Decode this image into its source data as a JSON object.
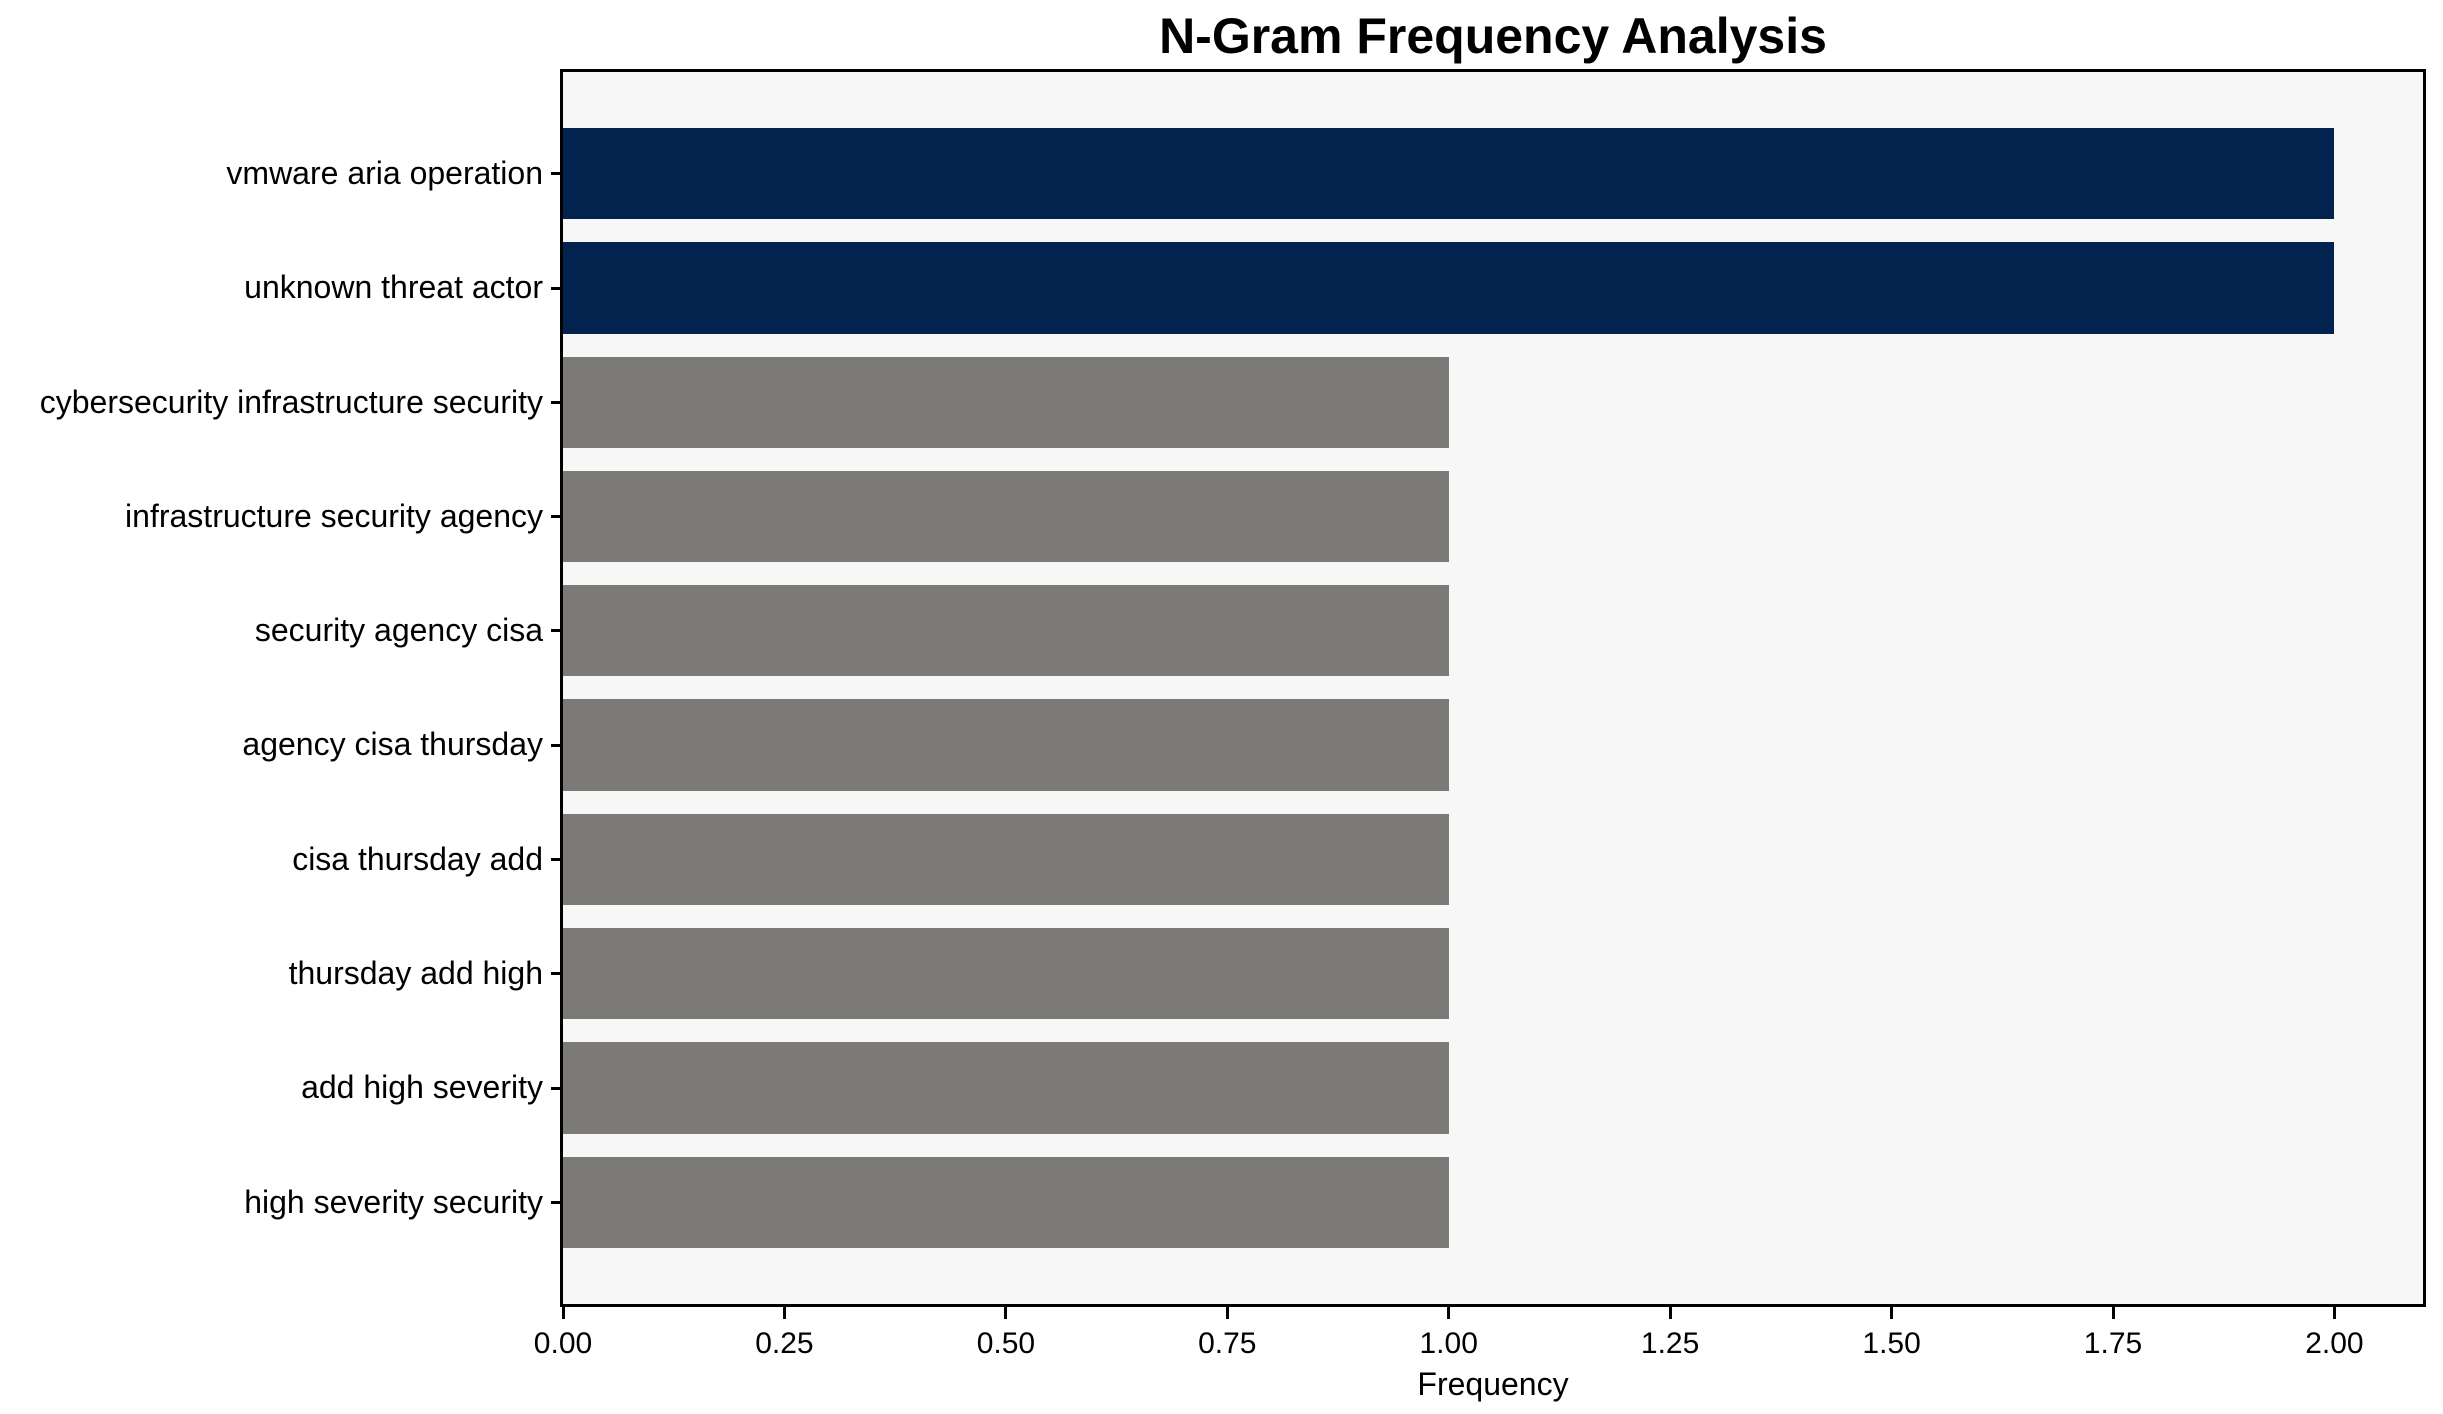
{
  "figure": {
    "background": "#ffffff",
    "plot_background": "#f7f7f7",
    "spine_color": "#000000",
    "text_color": "#000000",
    "highlight_color": "#02234d",
    "default_bar_color": "#7b7a76"
  },
  "chart_data": {
    "type": "bar",
    "orientation": "horizontal",
    "title": "N-Gram Frequency Analysis",
    "xlabel": "Frequency",
    "ylabel": "",
    "categories": [
      "vmware aria operation",
      "unknown threat actor",
      "cybersecurity infrastructure security",
      "infrastructure security agency",
      "security agency cisa",
      "agency cisa thursday",
      "cisa thursday add",
      "thursday add high",
      "add high severity",
      "high severity security"
    ],
    "values": [
      2,
      2,
      1,
      1,
      1,
      1,
      1,
      1,
      1,
      1
    ],
    "bar_colors": [
      "#02234d",
      "#02234d",
      "#7b7a76",
      "#7b7a76",
      "#7b7a76",
      "#7b7a76",
      "#7b7a76",
      "#7b7a76",
      "#7b7a76",
      "#7b7a76"
    ],
    "xlim": [
      0,
      2.1
    ],
    "xticks": [
      0,
      0.25,
      0.5,
      0.75,
      1.0,
      1.25,
      1.5,
      1.75,
      2.0
    ],
    "xtick_labels": [
      "0.00",
      "0.25",
      "0.50",
      "0.75",
      "1.00",
      "1.25",
      "1.50",
      "1.75",
      "2.00"
    ],
    "grid": false,
    "legend": null
  }
}
